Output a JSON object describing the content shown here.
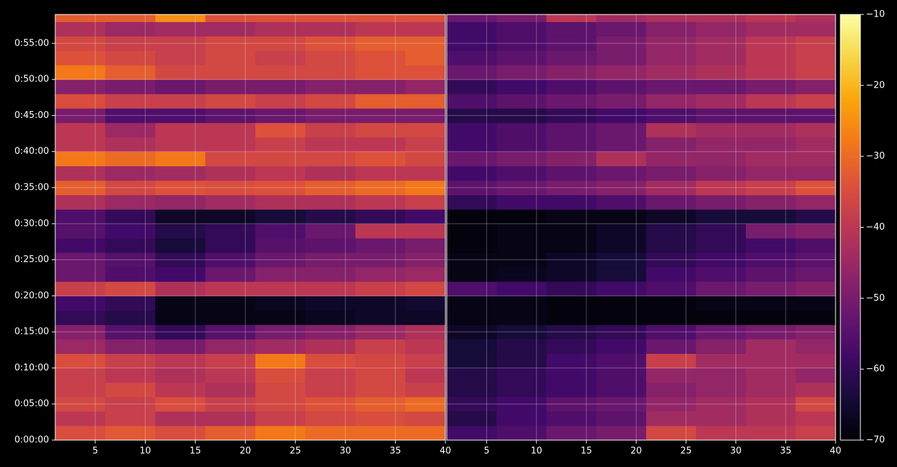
{
  "chart_data": {
    "type": "heatmap",
    "colormap": "inferno",
    "grid": true,
    "x_bins": [
      1,
      6,
      11,
      16,
      21,
      26,
      31,
      36,
      40
    ],
    "y_bins": [
      0,
      120,
      240,
      360,
      480,
      600,
      720,
      840,
      960,
      1080,
      1200,
      1320,
      1440,
      1560,
      1680,
      1800,
      1920,
      2040,
      2160,
      2280,
      2400,
      2520,
      2640,
      2760,
      2880,
      3000,
      3120,
      3240,
      3360,
      3480,
      3600
    ],
    "xlim": [
      1,
      40
    ],
    "ylim": [
      0,
      3540
    ],
    "xticks": [
      5,
      10,
      15,
      20,
      25,
      30,
      35,
      40
    ],
    "yticks": [
      {
        "value": 0,
        "label": "0:00:00"
      },
      {
        "value": 300,
        "label": "0:05:00"
      },
      {
        "value": 600,
        "label": "0:10:00"
      },
      {
        "value": 900,
        "label": "0:15:00"
      },
      {
        "value": 1200,
        "label": "0:20:00"
      },
      {
        "value": 1500,
        "label": "0:25:00"
      },
      {
        "value": 1800,
        "label": "0:30:00"
      },
      {
        "value": 2100,
        "label": "0:35:00"
      },
      {
        "value": 2400,
        "label": "0:40:00"
      },
      {
        "value": 2700,
        "label": "0:45:00"
      },
      {
        "value": 3000,
        "label": "0:50:00"
      },
      {
        "value": 3300,
        "label": "0:55:00"
      }
    ],
    "clim": [
      -70,
      -10
    ],
    "cticks": [
      {
        "value": -70,
        "label": "−70"
      },
      {
        "value": -60,
        "label": "−60"
      },
      {
        "value": -50,
        "label": "−50"
      },
      {
        "value": -40,
        "label": "−40"
      },
      {
        "value": -30,
        "label": "−30"
      },
      {
        "value": -20,
        "label": "−20"
      },
      {
        "value": -10,
        "label": "−10"
      }
    ],
    "panels": [
      {
        "values": [
          [
            -35,
            -33,
            -35,
            -32,
            -28,
            -30,
            -30,
            -30
          ],
          [
            -40,
            -38,
            -42,
            -42,
            -38,
            -36,
            -35,
            -36
          ],
          [
            -36,
            -38,
            -35,
            -38,
            -36,
            -34,
            -32,
            -30
          ],
          [
            -38,
            -36,
            -40,
            -42,
            -36,
            -38,
            -36,
            -38
          ],
          [
            -38,
            -40,
            -42,
            -40,
            -35,
            -38,
            -36,
            -40
          ],
          [
            -35,
            -38,
            -40,
            -38,
            -28,
            -35,
            -36,
            -38
          ],
          [
            -45,
            -48,
            -50,
            -46,
            -44,
            -42,
            -38,
            -40
          ],
          [
            -48,
            -55,
            -60,
            -55,
            -50,
            -48,
            -45,
            -42
          ],
          [
            -60,
            -62,
            -68,
            -68,
            -68,
            -67,
            -66,
            -66
          ],
          [
            -58,
            -60,
            -68,
            -68,
            -67,
            -66,
            -66,
            -65
          ],
          [
            -38,
            -36,
            -42,
            -40,
            -40,
            -40,
            -38,
            -36
          ],
          [
            -52,
            -56,
            -58,
            -52,
            -48,
            -48,
            -46,
            -45
          ],
          [
            -52,
            -55,
            -60,
            -56,
            -52,
            -50,
            -50,
            -48
          ],
          [
            -58,
            -60,
            -64,
            -60,
            -55,
            -54,
            -52,
            -50
          ],
          [
            -55,
            -58,
            -62,
            -60,
            -56,
            -52,
            -40,
            -40
          ],
          [
            -56,
            -60,
            -66,
            -66,
            -64,
            -62,
            -60,
            -58
          ],
          [
            -42,
            -45,
            -46,
            -44,
            -42,
            -42,
            -40,
            -38
          ],
          [
            -32,
            -36,
            -34,
            -35,
            -34,
            -32,
            -30,
            -28
          ],
          [
            -42,
            -45,
            -44,
            -42,
            -40,
            -42,
            -40,
            -40
          ],
          [
            -28,
            -30,
            -28,
            -36,
            -36,
            -36,
            -34,
            -36
          ],
          [
            -40,
            -42,
            -40,
            -40,
            -38,
            -40,
            -40,
            -38
          ],
          [
            -40,
            -45,
            -40,
            -40,
            -34,
            -38,
            -36,
            -36
          ],
          [
            -50,
            -56,
            -56,
            -54,
            -52,
            -50,
            -50,
            -50
          ],
          [
            -35,
            -38,
            -38,
            -36,
            -38,
            -36,
            -32,
            -32
          ],
          [
            -48,
            -50,
            -52,
            -50,
            -50,
            -48,
            -48,
            -46
          ],
          [
            -28,
            -32,
            -36,
            -36,
            -36,
            -36,
            -34,
            -34
          ],
          [
            -34,
            -36,
            -38,
            -36,
            -38,
            -36,
            -34,
            -32
          ],
          [
            -36,
            -38,
            -38,
            -36,
            -36,
            -34,
            -32,
            -32
          ],
          [
            -42,
            -45,
            -44,
            -44,
            -42,
            -42,
            -40,
            -40
          ],
          [
            -32,
            -32,
            -25,
            -34,
            -34,
            -34,
            -34,
            -34
          ]
        ]
      },
      {
        "values": [
          [
            -58,
            -56,
            -52,
            -50,
            -36,
            -40,
            -40,
            -38
          ],
          [
            -62,
            -58,
            -56,
            -54,
            -44,
            -44,
            -42,
            -40
          ],
          [
            -60,
            -58,
            -54,
            -52,
            -46,
            -44,
            -42,
            -36
          ],
          [
            -62,
            -60,
            -58,
            -56,
            -48,
            -46,
            -44,
            -42
          ],
          [
            -62,
            -60,
            -58,
            -56,
            -46,
            -46,
            -44,
            -46
          ],
          [
            -64,
            -62,
            -58,
            -56,
            -38,
            -44,
            -44,
            -44
          ],
          [
            -64,
            -62,
            -60,
            -58,
            -52,
            -48,
            -44,
            -46
          ],
          [
            -66,
            -64,
            -62,
            -60,
            -56,
            -52,
            -50,
            -48
          ],
          [
            -68,
            -68,
            -69,
            -69,
            -69,
            -69,
            -69,
            -69
          ],
          [
            -68,
            -68,
            -69,
            -69,
            -69,
            -68,
            -68,
            -68
          ],
          [
            -56,
            -58,
            -60,
            -58,
            -56,
            -52,
            -50,
            -48
          ],
          [
            -68,
            -67,
            -66,
            -64,
            -58,
            -56,
            -54,
            -52
          ],
          [
            -68,
            -68,
            -66,
            -64,
            -60,
            -58,
            -56,
            -54
          ],
          [
            -69,
            -68,
            -68,
            -66,
            -62,
            -60,
            -58,
            -56
          ],
          [
            -69,
            -68,
            -68,
            -66,
            -62,
            -60,
            -50,
            -48
          ],
          [
            -69,
            -69,
            -68,
            -68,
            -66,
            -64,
            -64,
            -62
          ],
          [
            -60,
            -58,
            -58,
            -56,
            -52,
            -50,
            -48,
            -46
          ],
          [
            -54,
            -52,
            -50,
            -48,
            -44,
            -40,
            -38,
            -34
          ],
          [
            -58,
            -56,
            -54,
            -52,
            -50,
            -48,
            -46,
            -46
          ],
          [
            -52,
            -50,
            -48,
            -42,
            -46,
            -46,
            -44,
            -44
          ],
          [
            -58,
            -56,
            -54,
            -52,
            -48,
            -46,
            -46,
            -44
          ],
          [
            -58,
            -56,
            -54,
            -52,
            -42,
            -44,
            -44,
            -42
          ],
          [
            -62,
            -62,
            -60,
            -58,
            -56,
            -54,
            -54,
            -54
          ],
          [
            -56,
            -54,
            -52,
            -50,
            -46,
            -44,
            -40,
            -38
          ],
          [
            -60,
            -58,
            -56,
            -54,
            -52,
            -52,
            -50,
            -48
          ],
          [
            -52,
            -50,
            -48,
            -46,
            -44,
            -42,
            -40,
            -38
          ],
          [
            -56,
            -54,
            -52,
            -50,
            -46,
            -44,
            -40,
            -38
          ],
          [
            -58,
            -56,
            -54,
            -50,
            -46,
            -44,
            -40,
            -38
          ],
          [
            -58,
            -56,
            -54,
            -52,
            -48,
            -46,
            -44,
            -44
          ],
          [
            -52,
            -50,
            -40,
            -44,
            -42,
            -42,
            -40,
            -42
          ]
        ]
      }
    ]
  }
}
